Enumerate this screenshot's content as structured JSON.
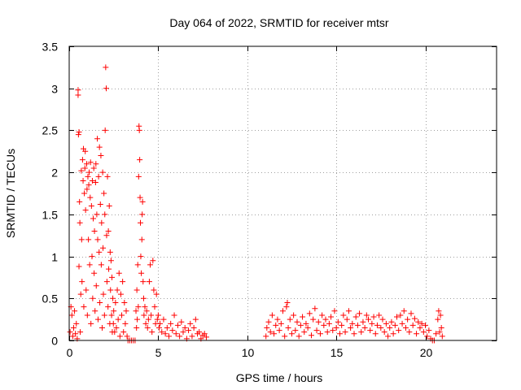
{
  "chart_data": {
    "type": "scatter",
    "title": "Day 064 of 2022, SRMTID for receiver mtsr",
    "xlabel": "GPS time / hours",
    "ylabel": "SRMTID / TECUs",
    "xlim": [
      0,
      24
    ],
    "ylim": [
      0,
      3.5
    ],
    "xticks": [
      0,
      5,
      10,
      15,
      20
    ],
    "xtick_labels": [
      "0",
      "5",
      "10",
      "15",
      "20"
    ],
    "yticks": [
      0,
      0.5,
      1,
      1.5,
      2,
      2.5,
      3,
      3.5
    ],
    "ytick_labels": [
      "0",
      "0.5",
      "1",
      "1.5",
      "2",
      "2.5",
      "3",
      "3.5"
    ],
    "grid": true,
    "marker": "+",
    "series": [
      {
        "name": "SRMTID",
        "color": "#ff0000",
        "points": [
          [
            0.05,
            0.1
          ],
          [
            0.1,
            0.4
          ],
          [
            0.15,
            0.3
          ],
          [
            0.2,
            0.05
          ],
          [
            0.25,
            0.15
          ],
          [
            0.3,
            0.35
          ],
          [
            0.35,
            0.08
          ],
          [
            0.4,
            0.2
          ],
          [
            0.45,
            0.02
          ],
          [
            0.5,
            2.98
          ],
          [
            0.5,
            2.92
          ],
          [
            0.52,
            2.45
          ],
          [
            0.55,
            2.48
          ],
          [
            0.55,
            0.88
          ],
          [
            0.58,
            1.65
          ],
          [
            0.6,
            1.4
          ],
          [
            0.62,
            0.1
          ],
          [
            0.65,
            0.55
          ],
          [
            0.68,
            2.02
          ],
          [
            0.7,
            1.2
          ],
          [
            0.72,
            0.7
          ],
          [
            0.75,
            2.15
          ],
          [
            0.78,
            1.9
          ],
          [
            0.8,
            2.28
          ],
          [
            0.82,
            0.4
          ],
          [
            0.85,
            1.75
          ],
          [
            0.88,
            2.05
          ],
          [
            0.9,
            2.25
          ],
          [
            0.92,
            1.55
          ],
          [
            0.95,
            0.6
          ],
          [
            0.98,
            2.1
          ],
          [
            1.0,
            1.8
          ],
          [
            1.02,
            0.3
          ],
          [
            1.05,
            1.95
          ],
          [
            1.08,
            1.2
          ],
          [
            1.1,
            1.85
          ],
          [
            1.12,
            2.0
          ],
          [
            1.15,
            0.9
          ],
          [
            1.18,
            1.7
          ],
          [
            1.2,
            2.12
          ],
          [
            1.22,
            0.2
          ],
          [
            1.25,
            1.6
          ],
          [
            1.28,
            1.0
          ],
          [
            1.3,
            1.9
          ],
          [
            1.32,
            0.5
          ],
          [
            1.35,
            1.45
          ],
          [
            1.38,
            2.05
          ],
          [
            1.4,
            0.8
          ],
          [
            1.42,
            1.3
          ],
          [
            1.45,
            0.35
          ],
          [
            1.48,
            1.88
          ],
          [
            1.5,
            2.1
          ],
          [
            1.52,
            0.65
          ],
          [
            1.55,
            1.5
          ],
          [
            1.58,
            2.4
          ],
          [
            1.6,
            1.2
          ],
          [
            1.62,
            0.25
          ],
          [
            1.65,
            1.95
          ],
          [
            1.68,
            1.05
          ],
          [
            1.7,
            2.3
          ],
          [
            1.72,
            0.45
          ],
          [
            1.75,
            1.62
          ],
          [
            1.78,
            2.2
          ],
          [
            1.8,
            0.9
          ],
          [
            1.82,
            1.4
          ],
          [
            1.85,
            0.15
          ],
          [
            1.88,
            2.0
          ],
          [
            1.9,
            1.1
          ],
          [
            1.92,
            0.55
          ],
          [
            1.95,
            1.75
          ],
          [
            1.98,
            0.3
          ],
          [
            2.0,
            1.5
          ],
          [
            2.02,
            2.5
          ],
          [
            2.05,
            3.25
          ],
          [
            2.08,
            3.0
          ],
          [
            2.1,
            1.25
          ],
          [
            2.12,
            0.7
          ],
          [
            2.15,
            1.95
          ],
          [
            2.18,
            0.4
          ],
          [
            2.2,
            1.3
          ],
          [
            2.22,
            0.85
          ],
          [
            2.25,
            1.6
          ],
          [
            2.28,
            0.2
          ],
          [
            2.3,
            1.05
          ],
          [
            2.32,
            0.6
          ],
          [
            2.35,
            0.95
          ],
          [
            2.38,
            0.3
          ],
          [
            2.4,
            0.75
          ],
          [
            2.42,
            0.1
          ],
          [
            2.45,
            0.5
          ],
          [
            2.48,
            0.2
          ],
          [
            2.5,
            0.35
          ],
          [
            2.55,
            0.1
          ],
          [
            2.6,
            0.45
          ],
          [
            2.65,
            0.15
          ],
          [
            2.7,
            0.6
          ],
          [
            2.75,
            0.25
          ],
          [
            2.8,
            0.8
          ],
          [
            2.85,
            0.05
          ],
          [
            2.9,
            0.55
          ],
          [
            2.95,
            0.3
          ],
          [
            3.0,
            0.7
          ],
          [
            3.05,
            0.1
          ],
          [
            3.1,
            0.45
          ],
          [
            3.15,
            0.2
          ],
          [
            3.2,
            0.35
          ],
          [
            3.25,
            0.05
          ],
          [
            3.3,
            0.0
          ],
          [
            3.4,
            0.0
          ],
          [
            3.5,
            0.0
          ],
          [
            3.6,
            0.0
          ],
          [
            3.7,
            0.0
          ],
          [
            3.75,
            0.35
          ],
          [
            3.78,
            0.15
          ],
          [
            3.8,
            0.6
          ],
          [
            3.82,
            0.25
          ],
          [
            3.85,
            0.9
          ],
          [
            3.88,
            0.4
          ],
          [
            3.9,
            1.95
          ],
          [
            3.92,
            2.55
          ],
          [
            3.94,
            2.5
          ],
          [
            3.96,
            2.15
          ],
          [
            3.98,
            1.7
          ],
          [
            4.0,
            1.4
          ],
          [
            4.02,
            1.0
          ],
          [
            4.05,
            0.8
          ],
          [
            4.08,
            1.2
          ],
          [
            4.1,
            1.5
          ],
          [
            4.12,
            1.65
          ],
          [
            4.15,
            0.7
          ],
          [
            4.18,
            0.5
          ],
          [
            4.2,
            0.3
          ],
          [
            4.25,
            0.4
          ],
          [
            4.3,
            0.2
          ],
          [
            4.35,
            0.35
          ],
          [
            4.4,
            0.15
          ],
          [
            4.45,
            0.25
          ],
          [
            4.5,
            0.7
          ],
          [
            4.55,
            0.9
          ],
          [
            4.6,
            0.3
          ],
          [
            4.65,
            0.1
          ],
          [
            4.7,
            0.95
          ],
          [
            4.75,
            0.6
          ],
          [
            4.8,
            0.4
          ],
          [
            4.85,
            0.2
          ],
          [
            4.9,
            0.55
          ],
          [
            4.95,
            0.25
          ],
          [
            5.0,
            0.3
          ],
          [
            5.05,
            0.15
          ],
          [
            5.1,
            0.2
          ],
          [
            5.2,
            0.1
          ],
          [
            5.3,
            0.25
          ],
          [
            5.4,
            0.08
          ],
          [
            5.5,
            0.15
          ],
          [
            5.6,
            0.05
          ],
          [
            5.7,
            0.2
          ],
          [
            5.8,
            0.12
          ],
          [
            5.9,
            0.3
          ],
          [
            6.0,
            0.08
          ],
          [
            6.1,
            0.18
          ],
          [
            6.2,
            0.05
          ],
          [
            6.3,
            0.22
          ],
          [
            6.4,
            0.1
          ],
          [
            6.5,
            0.15
          ],
          [
            6.6,
            0.02
          ],
          [
            6.7,
            0.12
          ],
          [
            6.8,
            0.2
          ],
          [
            6.9,
            0.05
          ],
          [
            7.0,
            0.15
          ],
          [
            7.1,
            0.25
          ],
          [
            7.2,
            0.08
          ],
          [
            7.3,
            0.1
          ],
          [
            7.4,
            0.02
          ],
          [
            7.5,
            0.06
          ],
          [
            7.6,
            0.08
          ],
          [
            7.7,
            0.04
          ],
          [
            11.05,
            0.05
          ],
          [
            11.1,
            0.15
          ],
          [
            11.2,
            0.22
          ],
          [
            11.3,
            0.1
          ],
          [
            11.4,
            0.3
          ],
          [
            11.5,
            0.08
          ],
          [
            11.6,
            0.18
          ],
          [
            11.7,
            0.25
          ],
          [
            11.8,
            0.12
          ],
          [
            11.9,
            0.2
          ],
          [
            12.0,
            0.35
          ],
          [
            12.1,
            0.05
          ],
          [
            12.2,
            0.4
          ],
          [
            12.25,
            0.45
          ],
          [
            12.3,
            0.15
          ],
          [
            12.4,
            0.25
          ],
          [
            12.5,
            0.08
          ],
          [
            12.6,
            0.3
          ],
          [
            12.7,
            0.12
          ],
          [
            12.8,
            0.22
          ],
          [
            12.9,
            0.05
          ],
          [
            13.0,
            0.18
          ],
          [
            13.1,
            0.28
          ],
          [
            13.2,
            0.1
          ],
          [
            13.3,
            0.2
          ],
          [
            13.4,
            0.15
          ],
          [
            13.5,
            0.32
          ],
          [
            13.6,
            0.06
          ],
          [
            13.7,
            0.25
          ],
          [
            13.8,
            0.38
          ],
          [
            13.9,
            0.12
          ],
          [
            14.0,
            0.22
          ],
          [
            14.1,
            0.08
          ],
          [
            14.2,
            0.3
          ],
          [
            14.3,
            0.18
          ],
          [
            14.4,
            0.25
          ],
          [
            14.5,
            0.1
          ],
          [
            14.6,
            0.2
          ],
          [
            14.7,
            0.28
          ],
          [
            14.8,
            0.12
          ],
          [
            14.9,
            0.35
          ],
          [
            15.0,
            0.15
          ],
          [
            15.1,
            0.22
          ],
          [
            15.2,
            0.08
          ],
          [
            15.3,
            0.18
          ],
          [
            15.4,
            0.3
          ],
          [
            15.5,
            0.1
          ],
          [
            15.6,
            0.25
          ],
          [
            15.7,
            0.35
          ],
          [
            15.8,
            0.15
          ],
          [
            15.9,
            0.2
          ],
          [
            16.0,
            0.08
          ],
          [
            16.1,
            0.28
          ],
          [
            16.2,
            0.18
          ],
          [
            16.3,
            0.32
          ],
          [
            16.4,
            0.1
          ],
          [
            16.5,
            0.22
          ],
          [
            16.6,
            0.15
          ],
          [
            16.7,
            0.3
          ],
          [
            16.8,
            0.25
          ],
          [
            16.9,
            0.12
          ],
          [
            17.0,
            0.2
          ],
          [
            17.1,
            0.28
          ],
          [
            17.2,
            0.08
          ],
          [
            17.3,
            0.18
          ],
          [
            17.4,
            0.3
          ],
          [
            17.5,
            0.15
          ],
          [
            17.6,
            0.25
          ],
          [
            17.7,
            0.1
          ],
          [
            17.8,
            0.2
          ],
          [
            17.9,
            0.05
          ],
          [
            18.0,
            0.15
          ],
          [
            18.1,
            0.22
          ],
          [
            18.2,
            0.08
          ],
          [
            18.3,
            0.18
          ],
          [
            18.4,
            0.28
          ],
          [
            18.5,
            0.12
          ],
          [
            18.6,
            0.3
          ],
          [
            18.7,
            0.2
          ],
          [
            18.8,
            0.35
          ],
          [
            18.9,
            0.15
          ],
          [
            19.0,
            0.25
          ],
          [
            19.1,
            0.1
          ],
          [
            19.2,
            0.32
          ],
          [
            19.3,
            0.18
          ],
          [
            19.4,
            0.26
          ],
          [
            19.5,
            0.08
          ],
          [
            19.6,
            0.22
          ],
          [
            19.7,
            0.15
          ],
          [
            19.8,
            0.2
          ],
          [
            19.9,
            0.1
          ],
          [
            20.0,
            0.18
          ],
          [
            20.1,
            0.05
          ],
          [
            20.2,
            0.12
          ],
          [
            20.3,
            0.02
          ],
          [
            20.4,
            0.0
          ],
          [
            20.5,
            0.0
          ],
          [
            20.6,
            0.08
          ],
          [
            20.7,
            0.25
          ],
          [
            20.75,
            0.35
          ],
          [
            20.8,
            0.1
          ],
          [
            20.85,
            0.3
          ],
          [
            20.9,
            0.15
          ],
          [
            20.95,
            0.05
          ]
        ]
      }
    ]
  }
}
